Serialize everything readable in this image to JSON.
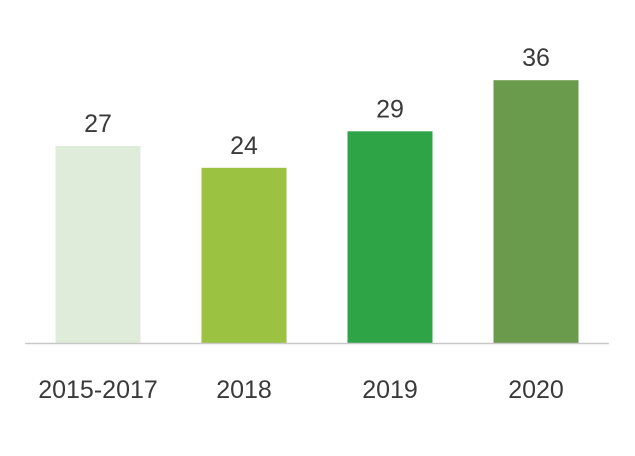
{
  "chart_data": {
    "type": "bar",
    "categories": [
      "2015-2017",
      "2018",
      "2019",
      "2020"
    ],
    "values": [
      27,
      24,
      29,
      36
    ],
    "title": "",
    "xlabel": "",
    "ylabel": "",
    "ylim": [
      0,
      36
    ],
    "grid": false,
    "legend": "none",
    "data_labels": true,
    "colors": [
      "#dfecd9",
      "#9bc240",
      "#2ea447",
      "#6a9a4b"
    ],
    "axis_color": "#c8c8c8",
    "text_color": "#3a3a3a"
  }
}
